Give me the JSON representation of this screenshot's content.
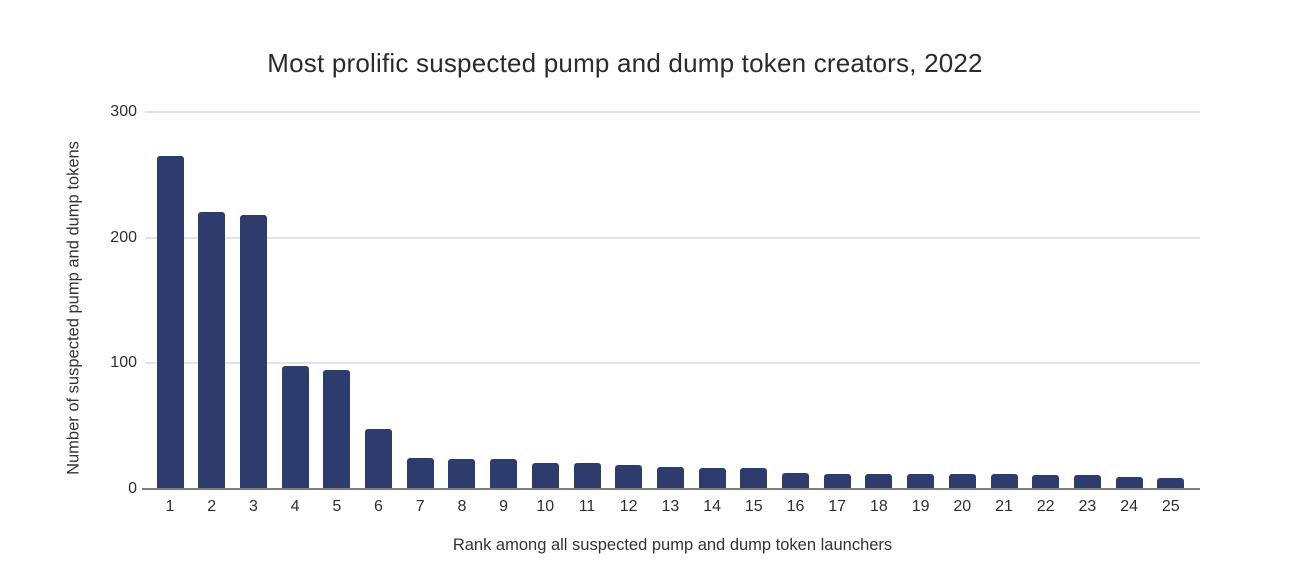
{
  "chart_data": {
    "type": "bar",
    "title": "Most prolific suspected pump and dump token creators, 2022",
    "xlabel": "Rank among all suspected pump and dump token launchers",
    "ylabel": "Number of suspected pump and dump tokens",
    "categories": [
      "1",
      "2",
      "3",
      "4",
      "5",
      "6",
      "7",
      "8",
      "9",
      "10",
      "11",
      "12",
      "13",
      "14",
      "15",
      "16",
      "17",
      "18",
      "19",
      "20",
      "21",
      "22",
      "23",
      "24",
      "25"
    ],
    "values": [
      264,
      220,
      217,
      97,
      94,
      47,
      24,
      23,
      23,
      20,
      20,
      18,
      17,
      16,
      16,
      12,
      11,
      11,
      11,
      11,
      11,
      10,
      10,
      9,
      8
    ],
    "ylim": [
      0,
      300
    ],
    "yticks": [
      0,
      100,
      200,
      300
    ],
    "grid": true,
    "legend": "none",
    "bar_color": "#2e3b6d",
    "gridline_color": "#e3e3e3",
    "axis_line_color": "#7d7d7d",
    "text_color": "#2e2e2e",
    "background_color": "#ffffff"
  }
}
